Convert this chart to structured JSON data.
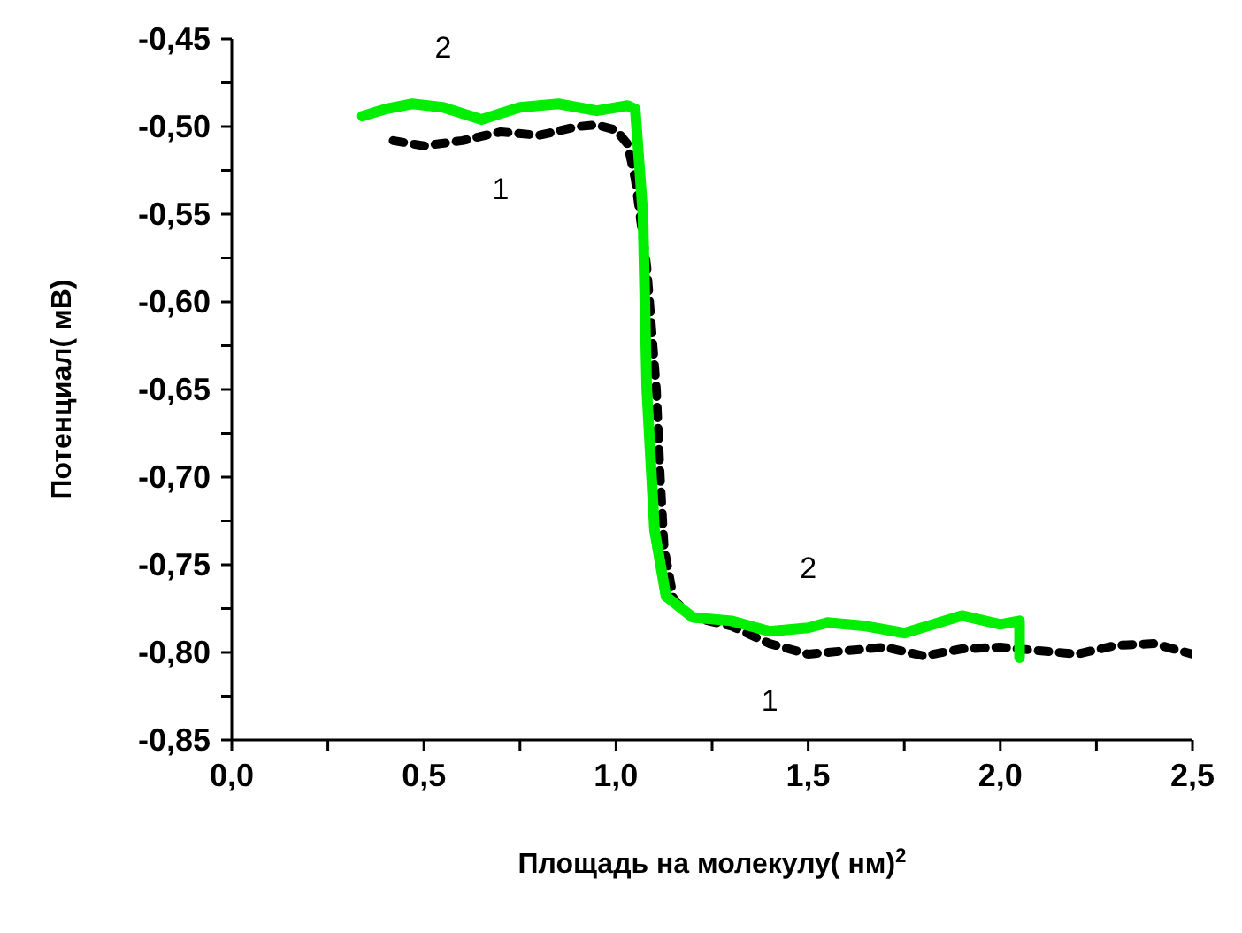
{
  "chart_data": {
    "type": "line",
    "xlabel": "Площадь на молекулу( нм)$^{2}$",
    "ylabel": "Потенциал( мВ)",
    "xlim": [
      0,
      2.5
    ],
    "xticks": [
      {
        "value": 0,
        "label": "0,0"
      },
      {
        "value": 0.25,
        "label": null
      },
      {
        "value": 0.5,
        "label": "0,5"
      },
      {
        "value": 0.75,
        "label": null
      },
      {
        "value": 1,
        "label": "1,0"
      },
      {
        "value": 1.25,
        "label": null
      },
      {
        "value": 1.5,
        "label": "1,5"
      },
      {
        "value": 1.75,
        "label": null
      },
      {
        "value": 2,
        "label": "2,0"
      },
      {
        "value": 2.25,
        "label": null
      },
      {
        "value": 2.5,
        "label": "2,5"
      }
    ],
    "ylim": [
      -0.85,
      -0.45
    ],
    "yticks": [
      {
        "value": -0.85,
        "label": "-0,85"
      },
      {
        "value": -0.825,
        "label": null
      },
      {
        "value": -0.8,
        "label": "-0,80"
      },
      {
        "value": -0.775,
        "label": null
      },
      {
        "value": -0.75,
        "label": "-0,75"
      },
      {
        "value": -0.725,
        "label": null
      },
      {
        "value": -0.7,
        "label": "-0,70"
      },
      {
        "value": -0.675,
        "label": null
      },
      {
        "value": -0.65,
        "label": "-0,65"
      },
      {
        "value": -0.625,
        "label": null
      },
      {
        "value": -0.6,
        "label": "-0,60"
      },
      {
        "value": -0.575,
        "label": null
      },
      {
        "value": -0.55,
        "label": "-0,55"
      },
      {
        "value": -0.525,
        "label": null
      },
      {
        "value": -0.5,
        "label": "-0,50"
      },
      {
        "value": -0.475,
        "label": null
      },
      {
        "value": -0.45,
        "label": "-0,45"
      }
    ],
    "grid": false,
    "legend": false,
    "marker": "none",
    "series": [
      {
        "name": "1",
        "color": "#000000",
        "line_style": "dashed",
        "x": [
          0.42,
          0.5,
          0.6,
          0.7,
          0.8,
          0.9,
          0.95,
          1.0,
          1.03,
          1.05,
          1.08,
          1.105,
          1.115,
          1.125,
          1.15,
          1.2,
          1.3,
          1.4,
          1.5,
          1.6,
          1.7,
          1.8,
          1.9,
          2.0,
          2.1,
          2.2,
          2.3,
          2.4,
          2.5
        ],
        "values": [
          -0.508,
          -0.511,
          -0.508,
          -0.503,
          -0.505,
          -0.5,
          -0.499,
          -0.502,
          -0.51,
          -0.53,
          -0.58,
          -0.65,
          -0.7,
          -0.74,
          -0.77,
          -0.78,
          -0.785,
          -0.795,
          -0.801,
          -0.799,
          -0.797,
          -0.802,
          -0.798,
          -0.797,
          -0.799,
          -0.801,
          -0.796,
          -0.795,
          -0.801
        ]
      },
      {
        "name": "2",
        "color": "#00ee00",
        "line_style": "solid",
        "x": [
          0.34,
          0.4,
          0.47,
          0.55,
          0.65,
          0.75,
          0.85,
          0.95,
          1.03,
          1.05,
          1.07,
          1.08,
          1.1,
          1.13,
          1.2,
          1.3,
          1.4,
          1.5,
          1.55,
          1.65,
          1.75,
          1.9,
          2.0,
          2.05,
          2.05
        ],
        "values": [
          -0.494,
          -0.49,
          -0.487,
          -0.489,
          -0.496,
          -0.489,
          -0.487,
          -0.491,
          -0.488,
          -0.49,
          -0.55,
          -0.65,
          -0.73,
          -0.768,
          -0.78,
          -0.782,
          -0.788,
          -0.786,
          -0.783,
          -0.785,
          -0.789,
          -0.779,
          -0.784,
          -0.782,
          -0.803
        ]
      }
    ]
  }
}
